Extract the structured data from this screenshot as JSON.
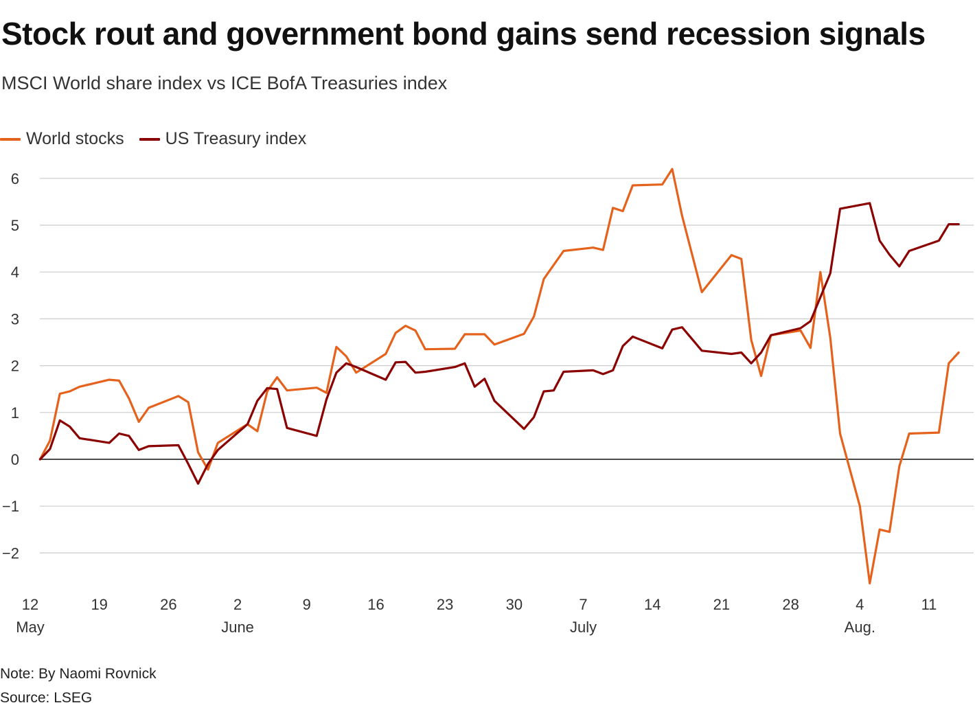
{
  "title": "Stock rout and government bond gains send recession signals",
  "subtitle": "MSCI World share index vs ICE BofA Treasuries index",
  "note": "Note: By Naomi Rovnick",
  "source": "Source: LSEG",
  "colors": {
    "world_stocks": "#e5621c",
    "us_treasury": "#8b0000",
    "grid": "#cccccc",
    "zero": "#111111"
  },
  "chart_data": {
    "type": "line",
    "title": "Stock rout and government bond gains send recession signals",
    "xlabel": "",
    "ylabel": "",
    "ylim": [
      -2.7,
      6.4
    ],
    "yticks": [
      6,
      5,
      4,
      3,
      2,
      1,
      0,
      -1,
      -2
    ],
    "ytick_labels": [
      "6",
      "5",
      "4",
      "3",
      "2",
      "1",
      "0",
      "−1",
      "−2"
    ],
    "x_domain_days": [
      0,
      94
    ],
    "xticks": [
      {
        "day": 0,
        "label": "12",
        "month": "May"
      },
      {
        "day": 7,
        "label": "19",
        "month": ""
      },
      {
        "day": 14,
        "label": "26",
        "month": ""
      },
      {
        "day": 21,
        "label": "2",
        "month": "June"
      },
      {
        "day": 28,
        "label": "9",
        "month": ""
      },
      {
        "day": 35,
        "label": "16",
        "month": ""
      },
      {
        "day": 42,
        "label": "23",
        "month": ""
      },
      {
        "day": 49,
        "label": "30",
        "month": ""
      },
      {
        "day": 56,
        "label": "7",
        "month": "July"
      },
      {
        "day": 63,
        "label": "14",
        "month": ""
      },
      {
        "day": 70,
        "label": "21",
        "month": ""
      },
      {
        "day": 77,
        "label": "28",
        "month": ""
      },
      {
        "day": 84,
        "label": "4",
        "month": "Aug."
      },
      {
        "day": 91,
        "label": "11",
        "month": ""
      }
    ],
    "legend": "top-left",
    "series": [
      {
        "name": "World stocks",
        "color": "#e5621c",
        "points": [
          [
            1,
            0
          ],
          [
            2,
            0.4
          ],
          [
            3,
            1.4
          ],
          [
            4,
            1.45
          ],
          [
            5,
            1.55
          ],
          [
            8,
            1.7
          ],
          [
            9,
            1.68
          ],
          [
            10,
            1.3
          ],
          [
            11,
            0.8
          ],
          [
            12,
            1.1
          ],
          [
            15,
            1.35
          ],
          [
            16,
            1.22
          ],
          [
            17,
            0.15
          ],
          [
            18,
            -0.22
          ],
          [
            19,
            0.35
          ],
          [
            22,
            0.75
          ],
          [
            23,
            0.6
          ],
          [
            24,
            1.45
          ],
          [
            25,
            1.75
          ],
          [
            26,
            1.47
          ],
          [
            29,
            1.53
          ],
          [
            30,
            1.42
          ],
          [
            31,
            2.4
          ],
          [
            32,
            2.2
          ],
          [
            33,
            1.85
          ],
          [
            36,
            2.25
          ],
          [
            37,
            2.7
          ],
          [
            38,
            2.85
          ],
          [
            39,
            2.75
          ],
          [
            40,
            2.35
          ],
          [
            43,
            2.36
          ],
          [
            44,
            2.67
          ],
          [
            46,
            2.67
          ],
          [
            47,
            2.45
          ],
          [
            50,
            2.68
          ],
          [
            51,
            3.05
          ],
          [
            52,
            3.85
          ],
          [
            54,
            4.45
          ],
          [
            57,
            4.52
          ],
          [
            58,
            4.47
          ],
          [
            59,
            5.37
          ],
          [
            60,
            5.3
          ],
          [
            61,
            5.85
          ],
          [
            64,
            5.87
          ],
          [
            65,
            6.2
          ],
          [
            66,
            5.2
          ],
          [
            68,
            3.57
          ],
          [
            71,
            4.36
          ],
          [
            72,
            4.28
          ],
          [
            73,
            2.55
          ],
          [
            74,
            1.78
          ],
          [
            75,
            2.65
          ],
          [
            78,
            2.75
          ],
          [
            79,
            2.38
          ],
          [
            80,
            4.0
          ],
          [
            81,
            2.6
          ],
          [
            82,
            0.55
          ],
          [
            84,
            -1.0
          ],
          [
            85,
            -2.65
          ],
          [
            86,
            -1.5
          ],
          [
            87,
            -1.55
          ],
          [
            88,
            -0.15
          ],
          [
            89,
            0.55
          ],
          [
            92,
            0.57
          ],
          [
            93,
            2.05
          ],
          [
            94,
            2.28
          ]
        ]
      },
      {
        "name": "US Treasury index",
        "color": "#8b0000",
        "points": [
          [
            1,
            0
          ],
          [
            2,
            0.22
          ],
          [
            3,
            0.83
          ],
          [
            4,
            0.7
          ],
          [
            5,
            0.45
          ],
          [
            8,
            0.35
          ],
          [
            9,
            0.55
          ],
          [
            10,
            0.5
          ],
          [
            11,
            0.2
          ],
          [
            12,
            0.28
          ],
          [
            15,
            0.3
          ],
          [
            16,
            -0.1
          ],
          [
            17,
            -0.52
          ],
          [
            18,
            -0.1
          ],
          [
            19,
            0.2
          ],
          [
            22,
            0.75
          ],
          [
            23,
            1.25
          ],
          [
            24,
            1.52
          ],
          [
            25,
            1.5
          ],
          [
            26,
            0.67
          ],
          [
            29,
            0.5
          ],
          [
            30,
            1.28
          ],
          [
            31,
            1.85
          ],
          [
            32,
            2.05
          ],
          [
            33,
            1.97
          ],
          [
            36,
            1.7
          ],
          [
            37,
            2.07
          ],
          [
            38,
            2.08
          ],
          [
            39,
            1.85
          ],
          [
            40,
            1.87
          ],
          [
            43,
            1.97
          ],
          [
            44,
            2.05
          ],
          [
            45,
            1.55
          ],
          [
            46,
            1.72
          ],
          [
            47,
            1.25
          ],
          [
            50,
            0.65
          ],
          [
            51,
            0.9
          ],
          [
            52,
            1.45
          ],
          [
            53,
            1.47
          ],
          [
            54,
            1.87
          ],
          [
            57,
            1.9
          ],
          [
            58,
            1.82
          ],
          [
            59,
            1.9
          ],
          [
            60,
            2.42
          ],
          [
            61,
            2.62
          ],
          [
            64,
            2.37
          ],
          [
            65,
            2.77
          ],
          [
            66,
            2.82
          ],
          [
            68,
            2.32
          ],
          [
            71,
            2.25
          ],
          [
            72,
            2.28
          ],
          [
            73,
            2.05
          ],
          [
            74,
            2.28
          ],
          [
            75,
            2.65
          ],
          [
            78,
            2.8
          ],
          [
            79,
            2.95
          ],
          [
            81,
            3.97
          ],
          [
            82,
            5.35
          ],
          [
            85,
            5.47
          ],
          [
            86,
            4.67
          ],
          [
            87,
            4.37
          ],
          [
            88,
            4.12
          ],
          [
            89,
            4.45
          ],
          [
            92,
            4.67
          ],
          [
            93,
            5.02
          ],
          [
            94,
            5.02
          ]
        ]
      }
    ]
  }
}
